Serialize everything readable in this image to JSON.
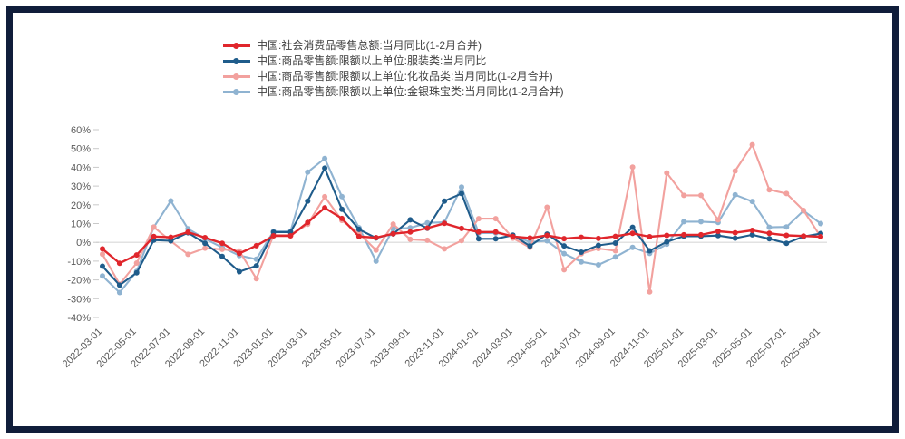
{
  "page": {
    "background": "#ffffff",
    "frame_color": "#101d3a"
  },
  "axis": {
    "y_suffix": "%",
    "text_color": "#595959",
    "zero_line_color": "#d9d9d9",
    "tick_color": "#c9c9c9"
  },
  "chart_data": {
    "type": "line",
    "title": "",
    "xlabel": "",
    "ylabel": "",
    "ylim": [
      -40,
      60
    ],
    "y_ticks": [
      60,
      50,
      40,
      30,
      20,
      10,
      0,
      -10,
      -20,
      -30,
      -40
    ],
    "y_tick_labels": [
      "60%",
      "50%",
      "40%",
      "30%",
      "20%",
      "10%",
      "0%",
      "-10%",
      "-20%",
      "-30%",
      "-40%"
    ],
    "grid": "zero-line-only",
    "legend_position": "top-left",
    "x_tick_rotation": -45,
    "x_tick_every": 2,
    "x": [
      "2022-03-01",
      "2022-04-01",
      "2022-05-01",
      "2022-06-01",
      "2022-07-01",
      "2022-08-01",
      "2022-09-01",
      "2022-10-01",
      "2022-11-01",
      "2022-12-01",
      "2023-01-01",
      "2023-02-01",
      "2023-03-01",
      "2023-04-01",
      "2023-05-01",
      "2023-06-01",
      "2023-07-01",
      "2023-08-01",
      "2023-09-01",
      "2023-10-01",
      "2023-11-01",
      "2023-12-01",
      "2024-01-01",
      "2024-02-01",
      "2024-03-01",
      "2024-04-01",
      "2024-05-01",
      "2024-06-01",
      "2024-07-01",
      "2024-08-01",
      "2024-09-01",
      "2024-10-01",
      "2024-11-01",
      "2024-12-01",
      "2025-01-01",
      "2025-02-01",
      "2025-03-01",
      "2025-04-01",
      "2025-05-01",
      "2025-06-01",
      "2025-07-01",
      "2025-08-01",
      "2025-09-01"
    ],
    "x_tick_labels": [
      "2022-03-01",
      "2022-05-01",
      "2022-07-01",
      "2022-09-01",
      "2022-11-01",
      "2023-01-01",
      "2023-03-01",
      "2023-05-01",
      "2023-07-01",
      "2023-09-01",
      "2023-11-01",
      "2024-01-01",
      "2024-03-01",
      "2024-05-01",
      "2024-07-01",
      "2024-09-01",
      "2024-11-01",
      "2025-01-01",
      "2025-03-01",
      "2025-05-01",
      "2025-07-01",
      "2025-09-01"
    ],
    "series": [
      {
        "name": "中国:社会消费品零售总额:当月同比(1-2月合并)",
        "color": "#e0262c",
        "marker": "circle",
        "values": [
          -3.5,
          -11.1,
          -6.7,
          3.1,
          2.7,
          5.4,
          2.5,
          -0.5,
          -5.9,
          -1.8,
          3.5,
          3.5,
          10.6,
          18.4,
          12.7,
          3.1,
          2.5,
          4.6,
          5.5,
          7.6,
          10.1,
          7.4,
          5.5,
          5.5,
          3.1,
          2.3,
          3.7,
          2.0,
          2.7,
          2.1,
          3.2,
          4.8,
          3.0,
          3.7,
          4.0,
          4.0,
          5.9,
          5.1,
          6.4,
          4.8,
          3.7,
          3.4,
          3.0
        ]
      },
      {
        "name": "中国:商品零售额:限额以上单位:服装类:当月同比",
        "color": "#1f5c8b",
        "marker": "circle",
        "values": [
          -12.7,
          -22.8,
          -16.2,
          1.2,
          0.8,
          5.1,
          -0.5,
          -7.5,
          -15.6,
          -12.5,
          5.4,
          5.4,
          22.0,
          39.5,
          17.6,
          6.9,
          2.3,
          4.5,
          12.0,
          7.5,
          22.0,
          26.0,
          1.9,
          1.9,
          3.8,
          -2.0,
          4.4,
          -1.9,
          -5.2,
          -1.6,
          -0.4,
          8.0,
          -4.5,
          0.3,
          3.3,
          3.3,
          3.6,
          2.2,
          4.0,
          1.9,
          -0.5,
          3.1,
          4.7
        ]
      },
      {
        "name": "中国:商品零售额:限额以上单位:化妆品类:当月同比(1-2月合并)",
        "color": "#f2a19e",
        "marker": "circle",
        "values": [
          -6.3,
          -22.3,
          -11.0,
          8.1,
          0.7,
          -6.4,
          -3.1,
          -3.7,
          -4.6,
          -19.3,
          3.8,
          3.8,
          9.6,
          24.3,
          11.7,
          4.8,
          -4.1,
          9.7,
          1.6,
          1.1,
          -3.5,
          0.9,
          12.6,
          12.6,
          2.2,
          -2.7,
          18.7,
          -14.6,
          -6.1,
          -3.3,
          -4.5,
          40.1,
          -26.4,
          37.0,
          25.0,
          25.0,
          12.0,
          38.0,
          52.0,
          28.0,
          26.0,
          17.0,
          3.0
        ]
      },
      {
        "name": "中国:商品零售额:限额以上单位:金银珠宝类:当月同比(1-2月合并)",
        "color": "#8fb3d1",
        "marker": "circle",
        "values": [
          -17.9,
          -26.7,
          -15.5,
          8.1,
          22.1,
          7.2,
          1.9,
          -2.7,
          -7.0,
          -9.0,
          5.9,
          5.9,
          37.4,
          44.7,
          24.4,
          7.8,
          -10.0,
          7.2,
          7.7,
          10.4,
          10.7,
          29.4,
          5.0,
          5.0,
          3.5,
          0.2,
          0.8,
          -6.0,
          -10.4,
          -12.0,
          -7.8,
          -2.7,
          -5.9,
          -1.0,
          11.0,
          11.0,
          10.6,
          25.3,
          21.8,
          8.0,
          8.2,
          16.8,
          10.0
        ]
      }
    ]
  }
}
